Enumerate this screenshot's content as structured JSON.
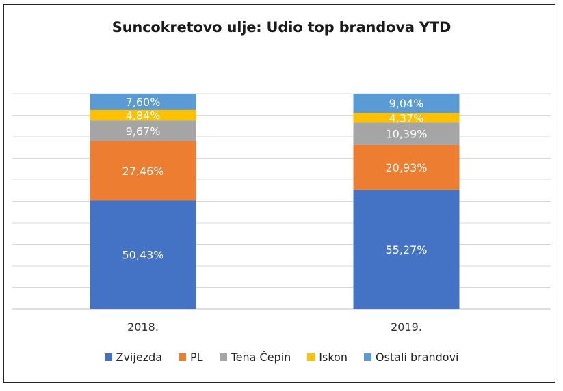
{
  "chart_data": {
    "type": "bar",
    "stacked": true,
    "title": "Suncokretovo ulje: Udio top brandova YTD",
    "categories": [
      "2018.",
      "2019."
    ],
    "ylim": [
      0,
      100
    ],
    "grid": true,
    "legend_position": "bottom",
    "series": [
      {
        "name": "Zvijezda",
        "color": "#4472C4",
        "values": [
          50.43,
          55.27
        ],
        "labels": [
          "50,43%",
          "55,27%"
        ]
      },
      {
        "name": "PL",
        "color": "#ED7D31",
        "values": [
          27.46,
          20.93
        ],
        "labels": [
          "27,46%",
          "20,93%"
        ]
      },
      {
        "name": "Tena Čepin",
        "color": "#A5A5A5",
        "values": [
          9.67,
          10.39
        ],
        "labels": [
          "9,67%",
          "10,39%"
        ]
      },
      {
        "name": "Iskon",
        "color": "#FFC000",
        "values": [
          4.84,
          4.37
        ],
        "labels": [
          "4,84%",
          "4,37%"
        ]
      },
      {
        "name": "Ostali brandovi",
        "color": "#5B9BD5",
        "values": [
          7.6,
          9.04
        ],
        "labels": [
          "7,60%",
          "9,04%"
        ]
      }
    ]
  }
}
